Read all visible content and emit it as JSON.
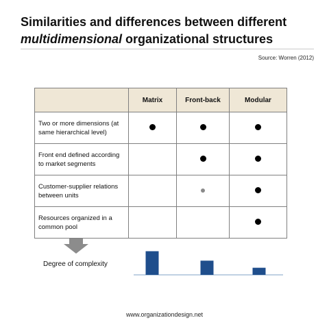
{
  "title": {
    "line1": "Similarities and differences between different",
    "line2_emphasis": "multidimensional",
    "line2_rest": " organizational structures"
  },
  "source": "Source: Worren (2012)",
  "table": {
    "columns": [
      "Matrix",
      "Front-back",
      "Modular"
    ],
    "rows": [
      {
        "label": "Two or more dimensions (at same hierarchical level)",
        "cells": [
          "full",
          "full",
          "full"
        ]
      },
      {
        "label": "Front end defined according to market segments",
        "cells": [
          "none",
          "full",
          "full"
        ]
      },
      {
        "label": "Customer-supplier relations between units",
        "cells": [
          "none",
          "partial",
          "full"
        ]
      },
      {
        "label": "Resources organized in a common pool",
        "cells": [
          "none",
          "none",
          "full"
        ]
      }
    ]
  },
  "complexity": {
    "label": "Degree of complexity",
    "bar_color": "#1f4e8c",
    "levels": [
      {
        "column": "Matrix",
        "value": 3
      },
      {
        "column": "Front-back",
        "value": 1.8
      },
      {
        "column": "Modular",
        "value": 0.9
      }
    ]
  },
  "footer": "www.organizationdesign.net"
}
